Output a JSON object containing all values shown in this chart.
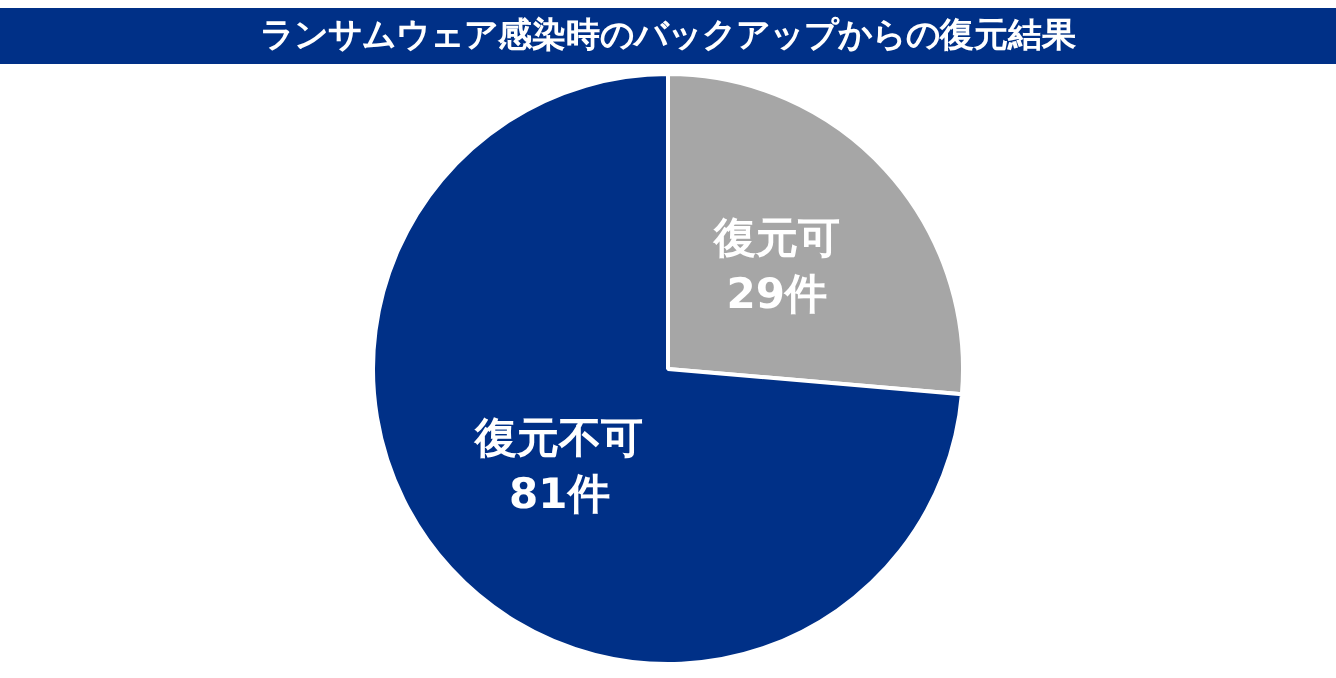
{
  "chart_data": {
    "type": "pie",
    "title": "ランサムウェア感染時のバックアップからの復元結果",
    "categories": [
      "復元可",
      "復元不可"
    ],
    "values": [
      29,
      81
    ],
    "colors": [
      "#a6a6a6",
      "#003087"
    ],
    "value_labels": [
      "29件",
      "81件"
    ],
    "legend": false
  }
}
